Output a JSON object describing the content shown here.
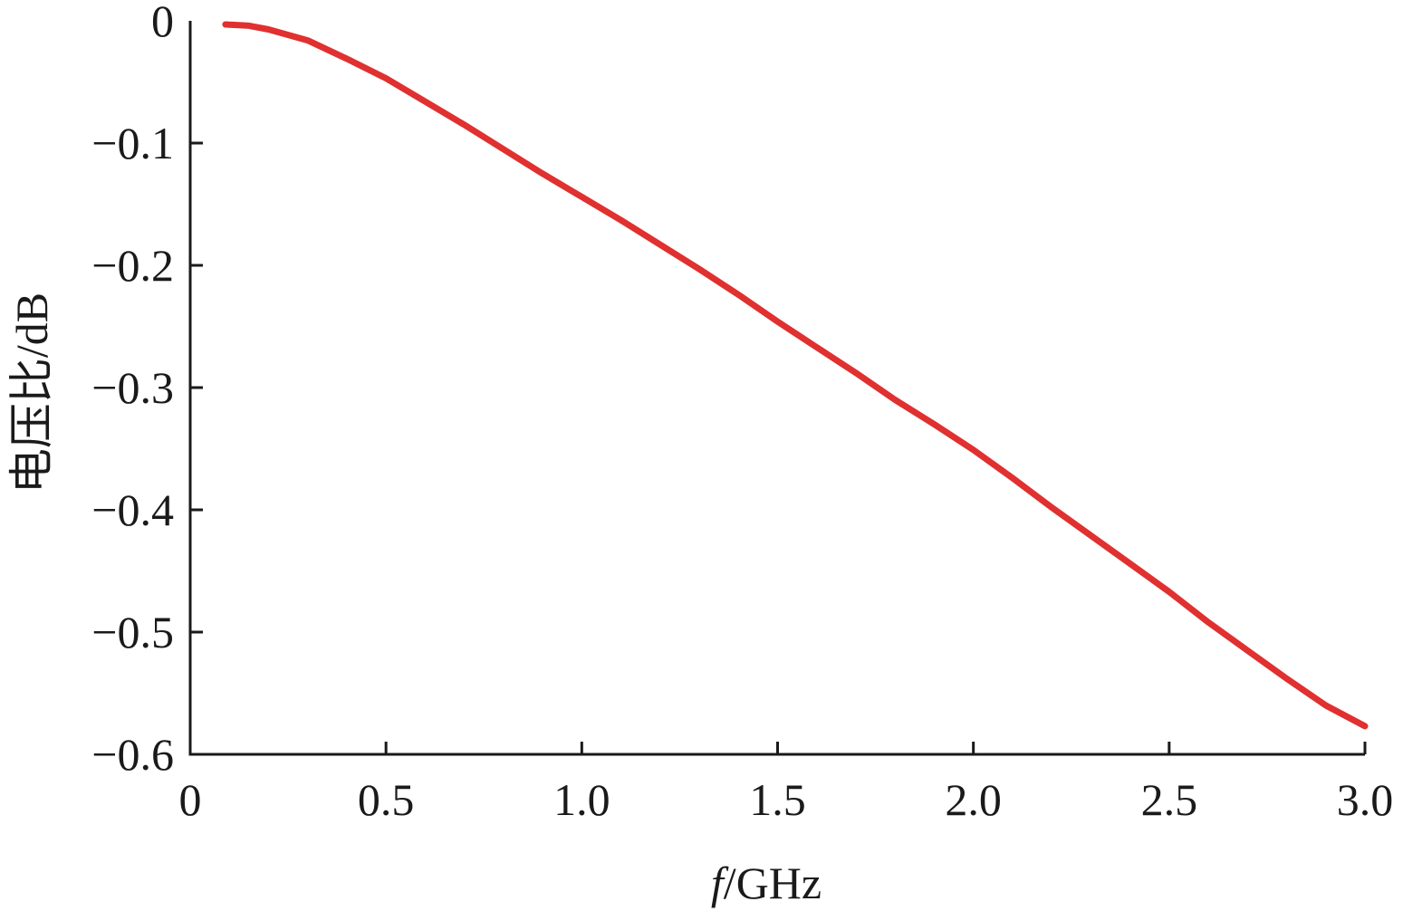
{
  "chart_data": {
    "type": "line",
    "title": "",
    "xlabel_italic": "f",
    "xlabel_rest": "/GHz",
    "ylabel": "电压比/dB",
    "xlim": [
      0,
      3.0
    ],
    "ylim": [
      -0.6,
      0
    ],
    "xticks": [
      0,
      0.5,
      1.0,
      1.5,
      2.0,
      2.5,
      3.0
    ],
    "xtick_labels": [
      "0",
      "0.5",
      "1.0",
      "1.5",
      "2.0",
      "2.5",
      "3.0"
    ],
    "yticks": [
      0,
      -0.1,
      -0.2,
      -0.3,
      -0.4,
      -0.5,
      -0.6
    ],
    "ytick_labels": [
      "0",
      "−0.1",
      "−0.2",
      "−0.3",
      "−0.4",
      "−0.5",
      "−0.6"
    ],
    "grid": false,
    "line_color": "#e03030",
    "series": [
      {
        "x": [
          0.09,
          0.15,
          0.2,
          0.3,
          0.4,
          0.5,
          0.6,
          0.7,
          0.8,
          0.9,
          1.0,
          1.1,
          1.2,
          1.3,
          1.4,
          1.5,
          1.6,
          1.7,
          1.8,
          1.9,
          2.0,
          2.1,
          2.2,
          2.3,
          2.4,
          2.5,
          2.6,
          2.7,
          2.8,
          2.9,
          3.0
        ],
        "y": [
          -0.003,
          -0.004,
          -0.007,
          -0.016,
          -0.031,
          -0.047,
          -0.066,
          -0.085,
          -0.105,
          -0.125,
          -0.144,
          -0.163,
          -0.183,
          -0.203,
          -0.224,
          -0.246,
          -0.267,
          -0.288,
          -0.31,
          -0.33,
          -0.351,
          -0.374,
          -0.398,
          -0.421,
          -0.444,
          -0.467,
          -0.492,
          -0.515,
          -0.538,
          -0.56,
          -0.577
        ]
      }
    ]
  }
}
